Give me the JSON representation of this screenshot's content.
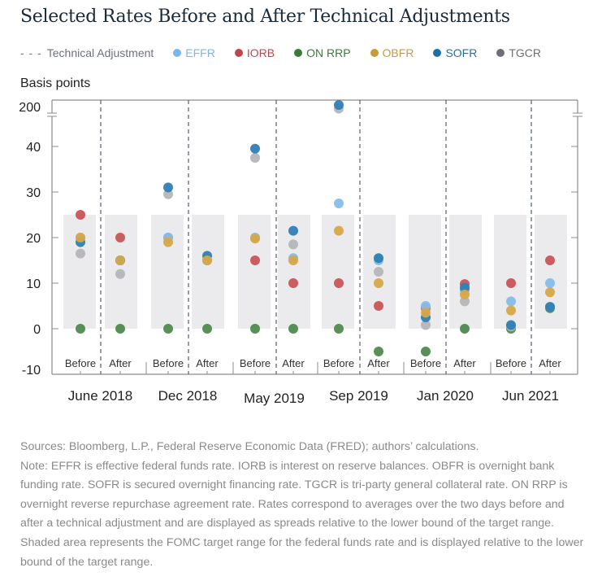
{
  "chart_data": {
    "type": "scatter",
    "title": "Selected Rates Before and After Technical Adjustments",
    "ylabel": "Basis points",
    "xlabel": "",
    "ylim": [
      -10,
      200
    ],
    "y_axis_break": {
      "below": 45,
      "above": 200
    },
    "yticks": [
      200,
      40,
      30,
      20,
      10,
      0,
      -10
    ],
    "grid": false,
    "legend_position": "top",
    "target_range": [
      0,
      25
    ],
    "legend": [
      {
        "key": "tech",
        "label": "Technical Adjustment",
        "style": "dashed",
        "color": "#6b7280"
      },
      {
        "key": "EFFR",
        "label": "EFFR",
        "color": "#7ab8e8"
      },
      {
        "key": "IORB",
        "label": "IORB",
        "color": "#c0464c"
      },
      {
        "key": "ONRRP",
        "label": "ON RRP",
        "color": "#3b7a3b"
      },
      {
        "key": "OBFR",
        "label": "OBFR",
        "color": "#c99a3a"
      },
      {
        "key": "SOFR",
        "label": "SOFR",
        "color": "#1f6fa6"
      },
      {
        "key": "TGCR",
        "label": "TGCR",
        "color": "#6b7078"
      }
    ],
    "dot_colors": {
      "EFFR": "#85bde9",
      "IORB": "#c95558",
      "ONRRP": "#4f8a4f",
      "OBFR": "#d6a848",
      "SOFR": "#2f7fb4",
      "TGCR": "#b4b6ba"
    },
    "draw_order": [
      "ONRRP",
      "IORB",
      "TGCR",
      "EFFR",
      "SOFR",
      "OBFR"
    ],
    "groups": [
      {
        "label": "June 2018",
        "before": {
          "label": "Before",
          "EFFR": 20,
          "IORB": 25,
          "ONRRP": 0,
          "OBFR": 20,
          "SOFR": 19,
          "TGCR": 16.5
        },
        "after": {
          "label": "After",
          "EFFR": 15,
          "IORB": 20,
          "ONRRP": 0,
          "OBFR": 15,
          "SOFR": 15,
          "TGCR": 12
        }
      },
      {
        "label": "Dec 2018",
        "before": {
          "label": "Before",
          "EFFR": 20,
          "IORB": 20,
          "ONRRP": 0,
          "OBFR": 19,
          "SOFR": 31,
          "TGCR": 29.5
        },
        "after": {
          "label": "After",
          "EFFR": 15,
          "IORB": 15,
          "ONRRP": 0,
          "OBFR": 15,
          "SOFR": 16,
          "TGCR": 15
        }
      },
      {
        "label": "May 2019",
        "before": {
          "label": "Before",
          "EFFR": 20,
          "IORB": 15,
          "ONRRP": 0,
          "OBFR": 19.8,
          "SOFR": 39.5,
          "TGCR": 37.5
        },
        "after": {
          "label": "After",
          "EFFR": 15.5,
          "IORB": 10,
          "ONRRP": 0,
          "OBFR": 15,
          "SOFR": 21.5,
          "TGCR": 18.5
        }
      },
      {
        "label": "Sep 2019",
        "before": {
          "label": "Before",
          "EFFR": 27.5,
          "IORB": 10,
          "ONRRP": 0,
          "OBFR": 21.5,
          "SOFR": 200,
          "TGCR": 195
        },
        "after": {
          "label": "After",
          "EFFR": 15,
          "IORB": 5,
          "ONRRP": -5,
          "OBFR": 10,
          "SOFR": 15.5,
          "TGCR": 12.5
        }
      },
      {
        "label": "Jan 2020",
        "before": {
          "label": "Before",
          "EFFR": 5,
          "IORB": 4.5,
          "ONRRP": -5,
          "OBFR": 3.5,
          "SOFR": 2.5,
          "TGCR": 0.8
        },
        "after": {
          "label": "After",
          "EFFR": 8.5,
          "IORB": 9.8,
          "ONRRP": 0,
          "OBFR": 7.5,
          "SOFR": 9,
          "TGCR": 6
        }
      },
      {
        "label": "Jun 2021",
        "before": {
          "label": "Before",
          "EFFR": 6,
          "IORB": 10,
          "ONRRP": 0,
          "OBFR": 4,
          "SOFR": 0.8,
          "TGCR": 0.5
        },
        "after": {
          "label": "After",
          "EFFR": 10,
          "IORB": 15,
          "ONRRP": 4.5,
          "OBFR": 8,
          "SOFR": 4.8,
          "TGCR": 4.8
        }
      }
    ]
  },
  "header": {
    "title": "Selected Rates Before and After Technical Adjustments"
  },
  "legend": {
    "tech_dash": "- - -",
    "tech_label": "Technical Adjustment",
    "items": [
      {
        "label": "EFFR",
        "color": "#7ab8e8"
      },
      {
        "label": "IORB",
        "color": "#c0464c"
      },
      {
        "label": "ON RRP",
        "color": "#3b7a3b"
      },
      {
        "label": "OBFR",
        "color": "#c99a3a"
      },
      {
        "label": "SOFR",
        "color": "#1f6fa6"
      },
      {
        "label": "TGCR",
        "color": "#6b7078"
      }
    ]
  },
  "notes": {
    "sources": "Sources: Bloomberg, L.P., Federal Reserve Economic Data (FRED); authors’ calculations.",
    "note": "Note: EFFR is effective federal funds rate. IORB is interest on reserve balances. OBFR is overnight bank funding rate. SOFR is secured overnight financing rate. TGCR is tri-party general collateral rate. ON RRP is overnight reverse repurchase agreement rate. Rates correspond to averages over the two days before and after a technical adjustment and are displayed as spreads relative to the lower bound of the target range. Shaded area represents the FOMC target range for the federal funds rate and is displayed relative to the lower bound of the target range."
  }
}
